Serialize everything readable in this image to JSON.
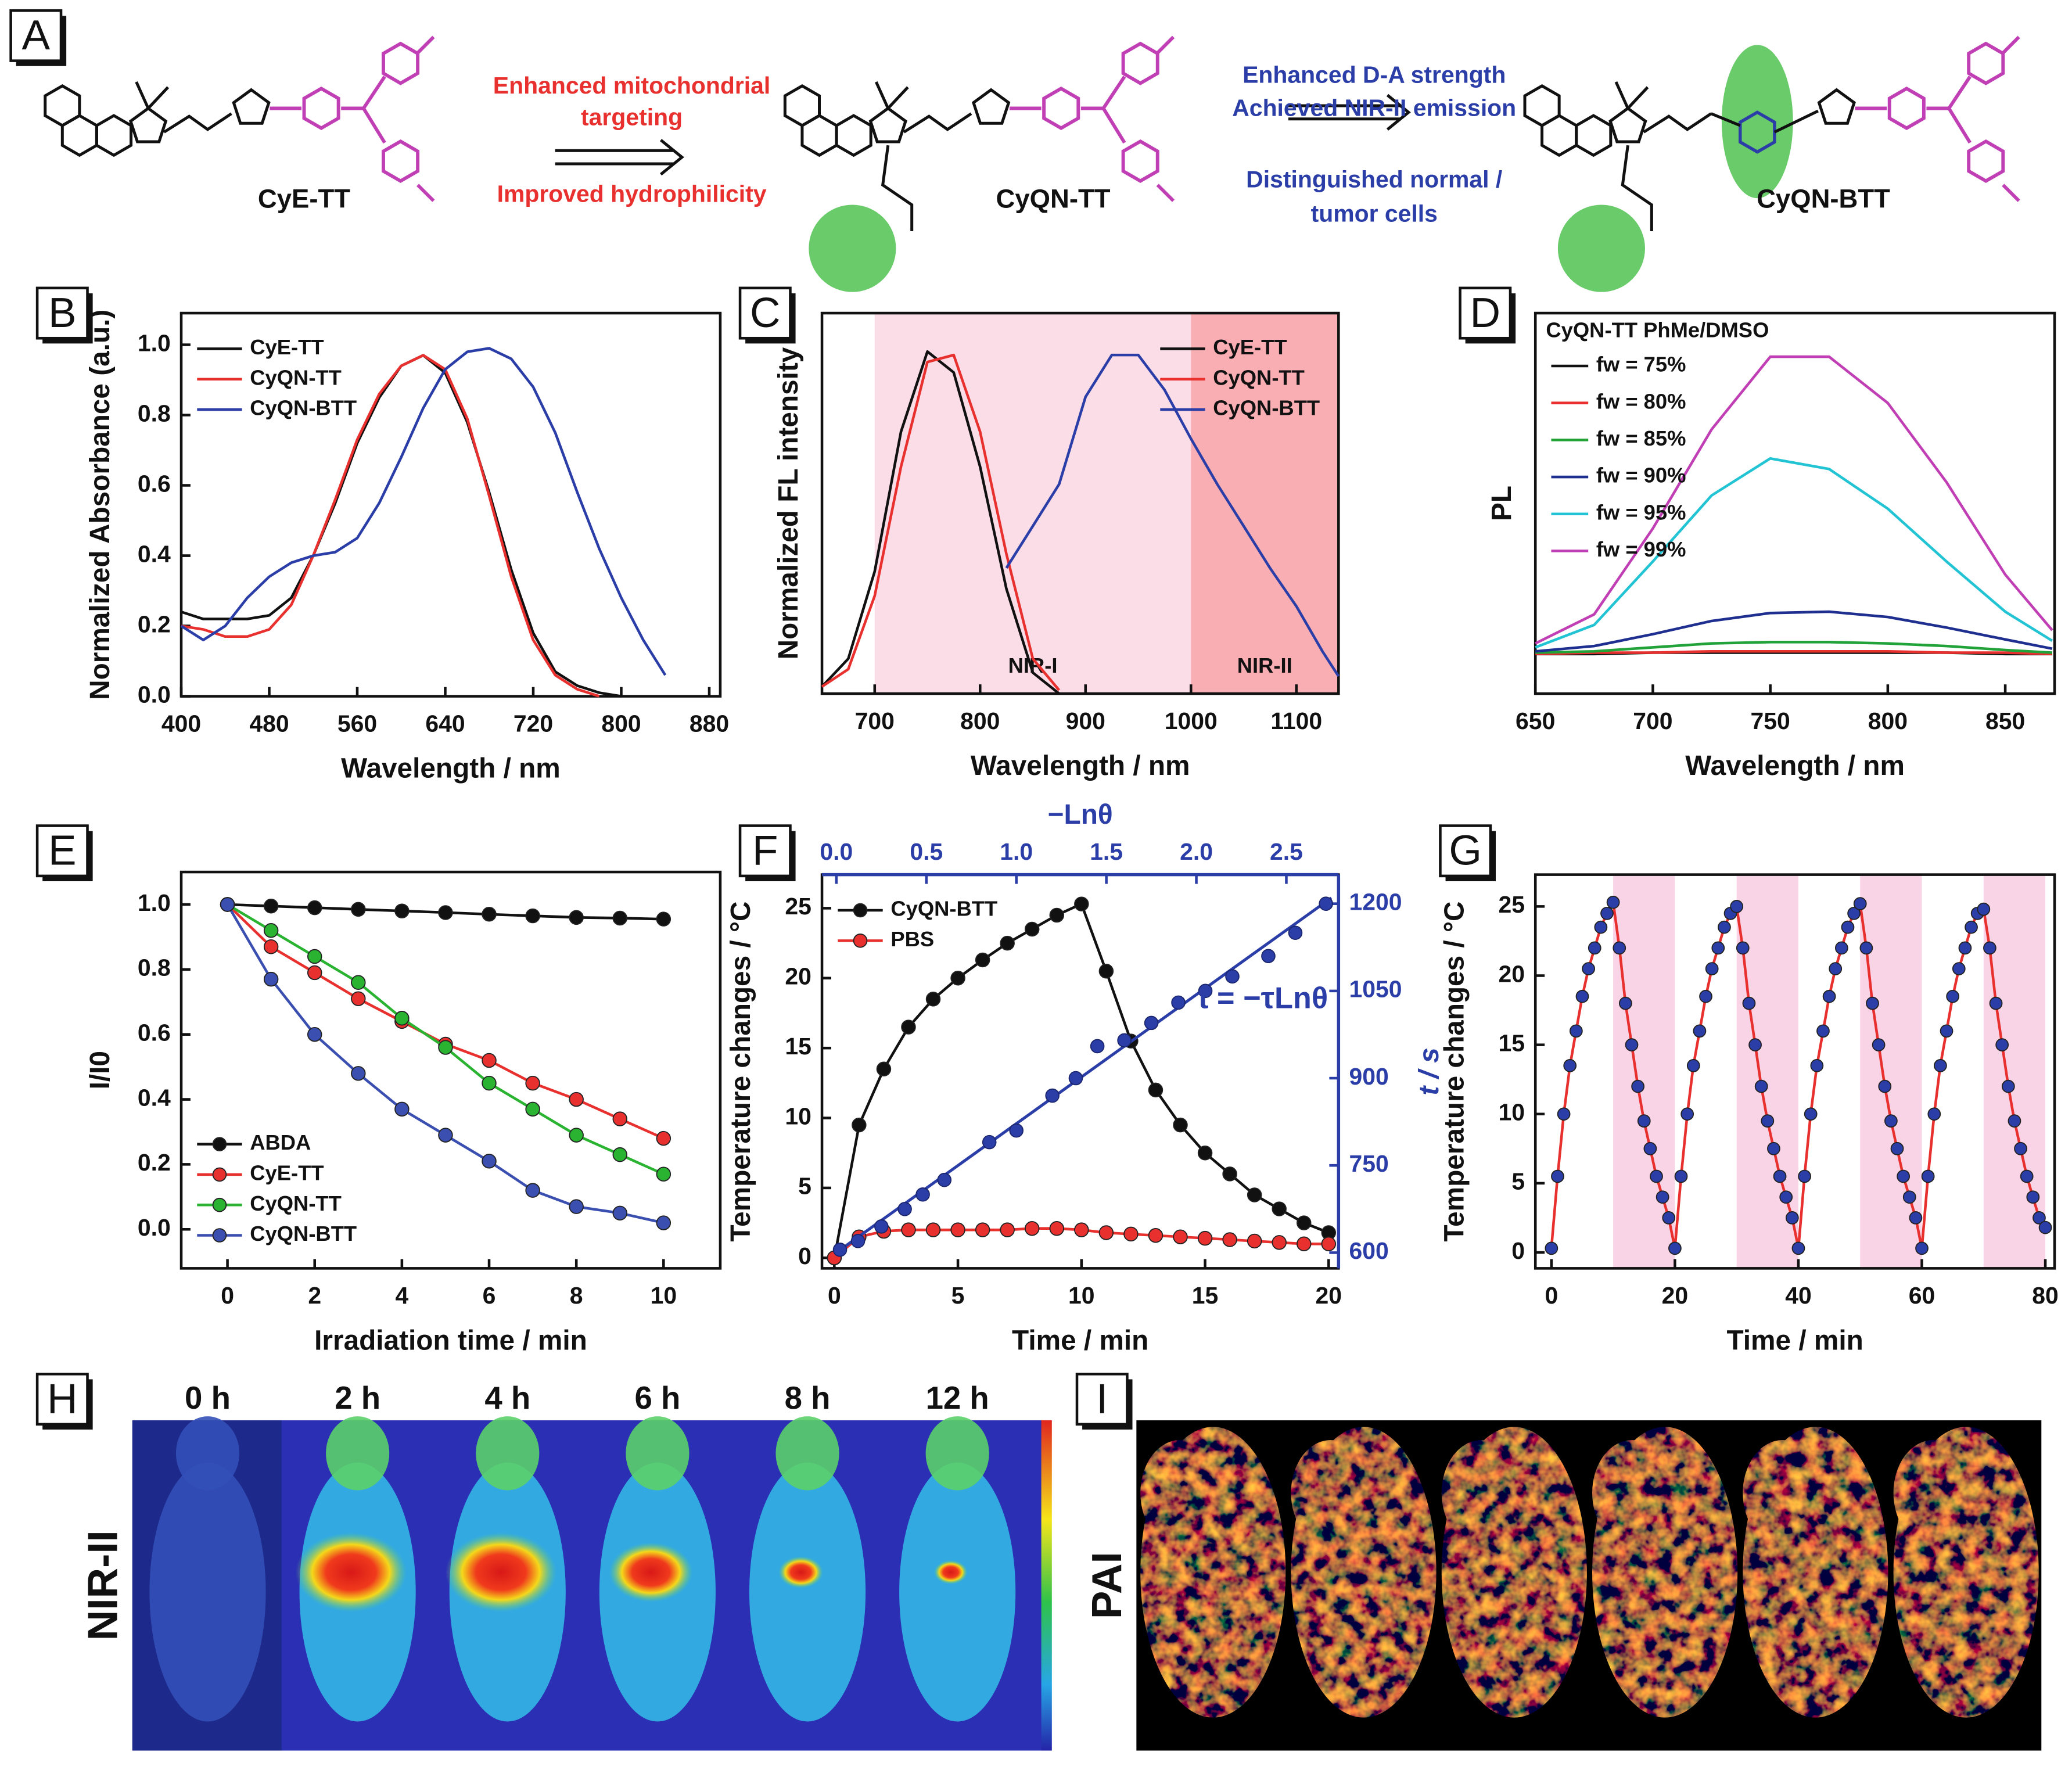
{
  "scheme": {
    "panel": "A",
    "compounds": [
      "CyE-TT",
      "CyQN-TT",
      "CyQN-BTT"
    ],
    "step1_above": [
      "Enhanced mitochondrial",
      "targeting"
    ],
    "step1_below": "Improved hydrophilicity",
    "step2_above": [
      "Enhanced D-A strength",
      "Achieved NIR-II emission"
    ],
    "step2_below": [
      "Distinguished normal /",
      "tumor cells"
    ]
  },
  "chart_data": [
    {
      "panel": "B",
      "type": "line",
      "x_label": "Wavelength / nm",
      "y_label": "Normalized Absorbance (a.u.)",
      "xlim": [
        400,
        890
      ],
      "xticks": [
        400,
        480,
        560,
        640,
        720,
        800,
        880
      ],
      "ylim": [
        0,
        1.09
      ],
      "yticks": [
        {
          "value": 0,
          "label": "0.0"
        },
        0.2,
        0.4,
        0.6,
        0.8,
        {
          "value": 1,
          "label": "1.0"
        }
      ],
      "legend": "upper left",
      "x": [
        400,
        420,
        440,
        460,
        480,
        500,
        520,
        540,
        560,
        580,
        600,
        620,
        640,
        660,
        680,
        700,
        720,
        740,
        760,
        780,
        800,
        820,
        840,
        860
      ],
      "series": [
        {
          "name": "CyE-TT",
          "color": "#111111",
          "values": [
            0.24,
            0.22,
            0.22,
            0.22,
            0.23,
            0.28,
            0.4,
            0.55,
            0.72,
            0.85,
            0.94,
            0.97,
            0.92,
            0.78,
            0.58,
            0.36,
            0.18,
            0.07,
            0.03,
            0.01,
            0.0,
            null,
            null,
            null
          ]
        },
        {
          "name": "CyQN-TT",
          "color": "#e8312f",
          "values": [
            0.2,
            0.19,
            0.17,
            0.17,
            0.19,
            0.26,
            0.4,
            0.56,
            0.73,
            0.86,
            0.94,
            0.97,
            0.93,
            0.79,
            0.57,
            0.34,
            0.16,
            0.06,
            0.02,
            0.0,
            null,
            null,
            null,
            null
          ]
        },
        {
          "name": "CyQN-BTT",
          "color": "#2b3ea8",
          "values": [
            0.2,
            0.16,
            0.2,
            0.28,
            0.34,
            0.38,
            0.4,
            0.41,
            0.45,
            0.55,
            0.68,
            0.82,
            0.93,
            0.98,
            0.99,
            0.96,
            0.88,
            0.75,
            0.58,
            0.42,
            0.28,
            0.16,
            0.06,
            null
          ]
        }
      ]
    },
    {
      "panel": "C",
      "type": "line",
      "x_label": "Wavelength / nm",
      "y_label": "Normalized FL  intensity",
      "xlim": [
        650,
        1140
      ],
      "xticks": [
        700,
        800,
        900,
        1000,
        1100
      ],
      "ylim": [
        0,
        1.09
      ],
      "regions": [
        {
          "from": 700,
          "to": 1000,
          "label": "NIR-I",
          "color": "#fbdde8"
        },
        {
          "from": 1000,
          "to": 1140,
          "label": "NIR-II",
          "color": "#f8aeb3"
        }
      ],
      "legend": "upper right",
      "x": [
        650,
        675,
        700,
        725,
        750,
        775,
        800,
        825,
        850,
        875,
        900,
        925,
        950,
        975,
        1000,
        1025,
        1050,
        1075,
        1100,
        1125,
        1140
      ],
      "series": [
        {
          "name": "CyE-TT",
          "color": "#111111",
          "values": [
            0.02,
            0.1,
            0.35,
            0.75,
            0.98,
            0.92,
            0.65,
            0.3,
            0.06,
            0.0,
            null,
            null,
            null,
            null,
            null,
            null,
            null,
            null,
            null,
            null,
            null
          ]
        },
        {
          "name": "CyQN-TT",
          "color": "#e8312f",
          "values": [
            0.02,
            0.07,
            0.28,
            0.65,
            0.95,
            0.97,
            0.75,
            0.4,
            0.1,
            0.01,
            null,
            null,
            null,
            null,
            null,
            null,
            null,
            null,
            null,
            null,
            null
          ]
        },
        {
          "name": "CyQN-BTT",
          "color": "#2b3ea8",
          "values": [
            null,
            null,
            null,
            null,
            null,
            null,
            null,
            0.36,
            0.48,
            0.6,
            0.85,
            0.97,
            0.97,
            0.87,
            0.73,
            0.6,
            0.48,
            0.36,
            0.25,
            0.12,
            0.05
          ]
        }
      ]
    },
    {
      "panel": "D",
      "type": "line",
      "x_label": "Wavelength / nm",
      "y_label": "PL",
      "xlim": [
        650,
        871
      ],
      "xticks": [
        650,
        700,
        750,
        800,
        850
      ],
      "ylim": [
        -30,
        258
      ],
      "legend": "upper left",
      "legend_title": "CyQN-TT PhMe/DMSO",
      "x": [
        650,
        675,
        700,
        725,
        750,
        775,
        800,
        825,
        850,
        870
      ],
      "series": [
        {
          "name": "fw = 75%",
          "color": "#111111",
          "values": [
            0,
            0,
            1,
            1,
            1,
            1,
            1,
            1,
            0,
            0
          ]
        },
        {
          "name": "fw = 80%",
          "color": "#e8312f",
          "values": [
            0,
            1,
            1,
            2,
            2,
            2,
            2,
            1,
            1,
            0
          ]
        },
        {
          "name": "fw = 85%",
          "color": "#22a33a",
          "values": [
            1,
            2,
            5,
            8,
            9,
            9,
            8,
            6,
            3,
            1
          ]
        },
        {
          "name": "fw = 90%",
          "color": "#1f2f8f",
          "values": [
            2,
            6,
            15,
            25,
            31,
            32,
            28,
            20,
            11,
            4
          ]
        },
        {
          "name": "fw = 95%",
          "color": "#22c4d4",
          "values": [
            5,
            22,
            70,
            120,
            148,
            140,
            110,
            70,
            32,
            10
          ]
        },
        {
          "name": "fw = 99%",
          "color": "#c13fb5",
          "values": [
            8,
            30,
            95,
            170,
            225,
            225,
            190,
            130,
            60,
            18
          ]
        }
      ]
    },
    {
      "panel": "E",
      "type": "line",
      "x_label": "Irradiation time / min",
      "y_label": "I/I0",
      "xlim": [
        -1.06,
        11.3
      ],
      "xticks": [
        0,
        2,
        4,
        6,
        8,
        10
      ],
      "ylim": [
        -0.12,
        1.1
      ],
      "yticks": [
        {
          "value": 0,
          "label": "0.0"
        },
        0.2,
        0.4,
        0.6,
        0.8,
        {
          "value": 1,
          "label": "1.0"
        }
      ],
      "legend": "lower left",
      "marker": "circle",
      "x": [
        0,
        1,
        2,
        3,
        4,
        5,
        6,
        7,
        8,
        9,
        10
      ],
      "series": [
        {
          "name": "ABDA",
          "color": "#111111",
          "values": [
            1,
            0.995,
            0.99,
            0.985,
            0.98,
            0.975,
            0.97,
            0.965,
            0.96,
            0.958,
            0.955
          ]
        },
        {
          "name": "CyE-TT",
          "color": "#e8312f",
          "values": [
            1,
            0.87,
            0.79,
            0.71,
            0.64,
            0.57,
            0.52,
            0.45,
            0.4,
            0.34,
            0.28
          ]
        },
        {
          "name": "CyQN-TT",
          "color": "#29b331",
          "values": [
            1,
            0.92,
            0.84,
            0.76,
            0.65,
            0.56,
            0.45,
            0.37,
            0.29,
            0.23,
            0.17
          ]
        },
        {
          "name": "CyQN-BTT",
          "color": "#3a4fb0",
          "values": [
            1,
            0.77,
            0.6,
            0.48,
            0.37,
            0.29,
            0.21,
            0.12,
            0.07,
            0.05,
            0.02
          ]
        }
      ]
    },
    {
      "panel": "F",
      "type": "line",
      "x_label": "Time / min",
      "y_label": "Temperature changes / °C",
      "xlim": [
        -0.5,
        20.4
      ],
      "xticks": [
        0,
        5,
        10,
        15,
        20
      ],
      "ylim": [
        -0.75,
        27.4
      ],
      "yticks": [
        0,
        5,
        10,
        15,
        20,
        25
      ],
      "legend": "upper left",
      "marker": "circle",
      "x": [
        0,
        1,
        2,
        3,
        4,
        5,
        6,
        7,
        8,
        9,
        10,
        11,
        12,
        13,
        14,
        15,
        16,
        17,
        18,
        19,
        20
      ],
      "series": [
        {
          "name": "CyQN-BTT",
          "color": "#111111",
          "values": [
            0,
            9.5,
            13.5,
            16.5,
            18.5,
            20,
            21.3,
            22.5,
            23.5,
            24.5,
            25.3,
            20.5,
            15.5,
            12,
            9.5,
            7.5,
            6,
            4.5,
            3.5,
            2.5,
            1.8
          ]
        },
        {
          "name": "PBS",
          "color": "#e8312f",
          "values": [
            0,
            1.5,
            1.9,
            2,
            2,
            2,
            2,
            2,
            2.1,
            2.1,
            2,
            1.8,
            1.7,
            1.6,
            1.5,
            1.4,
            1.3,
            1.2,
            1.1,
            1.0,
            1.0
          ]
        }
      ],
      "secondary_color": "#2b3ea8",
      "x2_label": "−Lnθ",
      "x2lim": [
        -0.08,
        2.79
      ],
      "x2ticks": [
        {
          "value": 0,
          "label": "0.0"
        },
        0.5,
        {
          "value": 1,
          "label": "1.0"
        },
        1.5,
        {
          "value": 2,
          "label": "2.0"
        },
        2.5
      ],
      "y2_label": "t / s",
      "y2lim": [
        573,
        1250
      ],
      "y2ticks": [
        600,
        750,
        900,
        1050,
        1200
      ],
      "scatter_x": [
        0.02,
        0.12,
        0.25,
        0.38,
        0.48,
        0.6,
        0.85,
        1.0,
        1.2,
        1.33,
        1.45,
        1.6,
        1.75,
        1.9,
        2.05,
        2.2,
        2.4,
        2.55,
        2.72
      ],
      "scatter_y": [
        605,
        620,
        645,
        675,
        700,
        725,
        790,
        810,
        870,
        900,
        955,
        965,
        995,
        1030,
        1050,
        1075,
        1110,
        1150,
        1200
      ],
      "fit_x": [
        0,
        2.75
      ],
      "fit_y": [
        600,
        1210
      ],
      "annotation": "t = −τLnθ"
    },
    {
      "panel": "G",
      "type": "line",
      "x_label": "Time / min",
      "y_label": "Temperature changes / °C",
      "xlim": [
        -2.6,
        81.5
      ],
      "xticks": [
        0,
        20,
        40,
        60,
        80
      ],
      "ylim": [
        -1.15,
        27.3
      ],
      "yticks": [
        0,
        5,
        10,
        15,
        20,
        25
      ],
      "marker": "circle",
      "region_color": "#f9d3e6",
      "regions": [
        {
          "from": 10,
          "to": 20
        },
        {
          "from": 30,
          "to": 40
        },
        {
          "from": 50,
          "to": 60
        },
        {
          "from": 70,
          "to": 80
        }
      ],
      "x": [
        0,
        1,
        2,
        3,
        4,
        5,
        6,
        7,
        8,
        9,
        10,
        11,
        12,
        13,
        14,
        15,
        16,
        17,
        18,
        19,
        20,
        21,
        22,
        23,
        24,
        25,
        26,
        27,
        28,
        29,
        30,
        31,
        32,
        33,
        34,
        35,
        36,
        37,
        38,
        39,
        40,
        41,
        42,
        43,
        44,
        45,
        46,
        47,
        48,
        49,
        50,
        51,
        52,
        53,
        54,
        55,
        56,
        57,
        58,
        59,
        60,
        61,
        62,
        63,
        64,
        65,
        66,
        67,
        68,
        69,
        70,
        71,
        72,
        73,
        74,
        75,
        76,
        77,
        78,
        79,
        80
      ],
      "series": [
        {
          "color": "#2b3ea8",
          "line_color": "#e8312f",
          "values": [
            0.3,
            5.5,
            10,
            13.5,
            16,
            18.5,
            20.5,
            22,
            23.5,
            24.5,
            25.3,
            22,
            18,
            15,
            12,
            9.5,
            7.5,
            5.5,
            4,
            2.5,
            0.3,
            5.5,
            10,
            13.5,
            16,
            18.5,
            20.5,
            22,
            23.5,
            24.5,
            25.0,
            22,
            18,
            15,
            12,
            9.5,
            7.5,
            5.5,
            4,
            2.5,
            0.3,
            5.5,
            10,
            13.5,
            16,
            18.5,
            20.5,
            22,
            23.5,
            24.5,
            25.2,
            22,
            18,
            15,
            12,
            9.5,
            7.5,
            5.5,
            4,
            2.5,
            0.3,
            5.5,
            10,
            13.5,
            16,
            18.5,
            20.5,
            22,
            23.5,
            24.5,
            24.8,
            22,
            18,
            15,
            12,
            9.5,
            7.5,
            5.5,
            4,
            2.5,
            1.8
          ]
        }
      ]
    }
  ],
  "imaging": {
    "nir": {
      "panel": "H",
      "label": "NIR-II",
      "times": [
        "0 h",
        "2 h",
        "4 h",
        "6 h",
        "8 h",
        "12 h"
      ]
    },
    "pai": {
      "panel": "I",
      "label": "PAI"
    }
  }
}
